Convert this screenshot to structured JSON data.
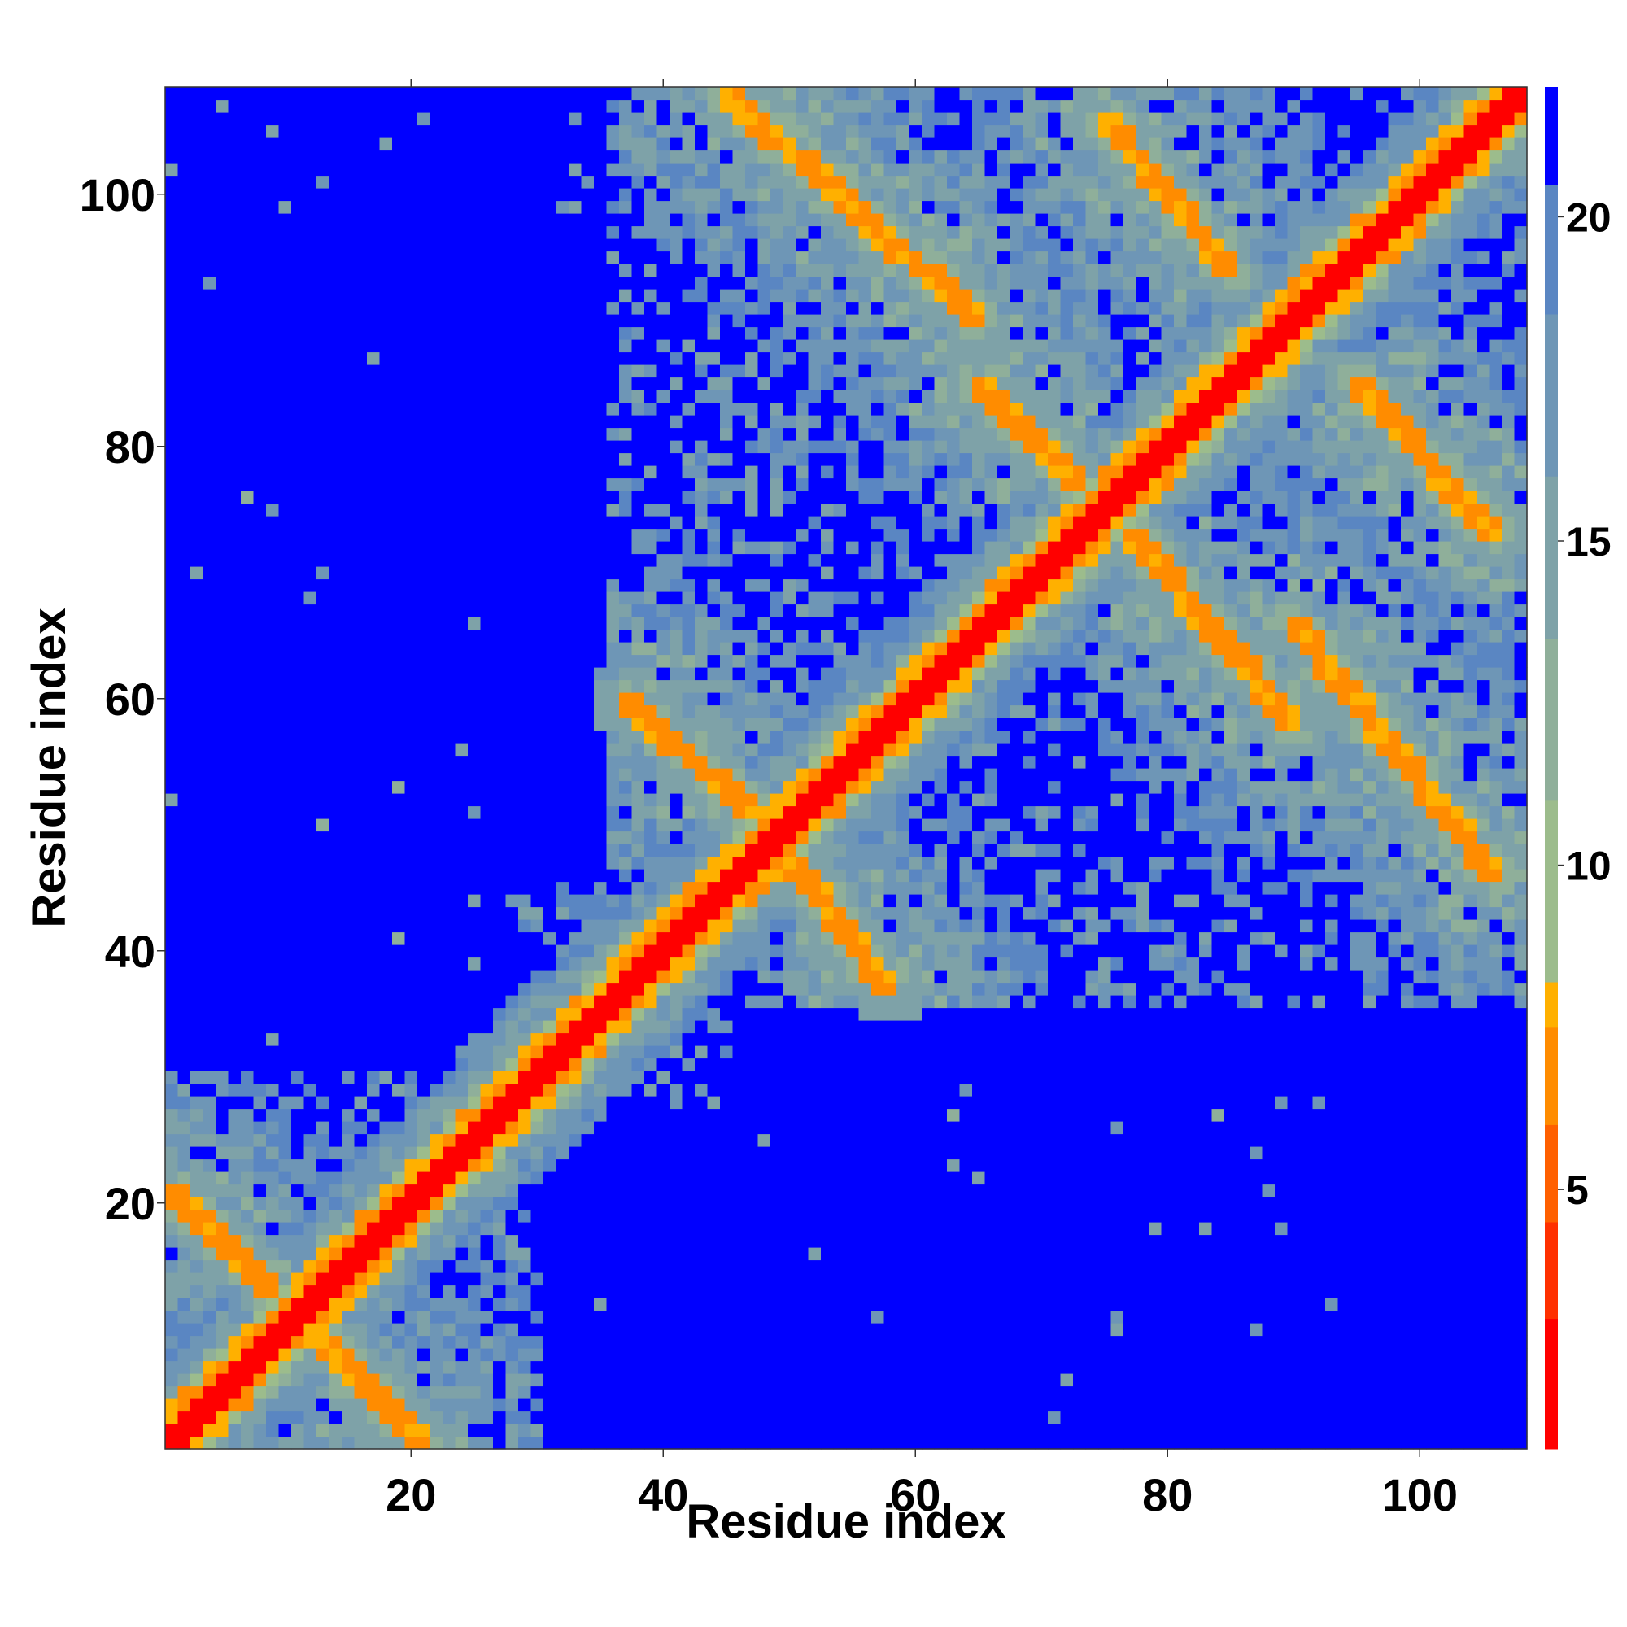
{
  "chart_data": {
    "type": "heatmap",
    "title": "",
    "xlabel": "Residue index",
    "ylabel": "Residue index",
    "n_residues": 108,
    "xlim": [
      1,
      108
    ],
    "ylim": [
      1,
      108
    ],
    "x_ticks": [
      20,
      40,
      60,
      80,
      100
    ],
    "y_ticks": [
      20,
      40,
      60,
      80,
      100
    ],
    "colorbar": {
      "range": [
        1,
        22
      ],
      "ticks": [
        5,
        10,
        15,
        20
      ],
      "colors": [
        "#ff0000",
        "#ff3000",
        "#ff6000",
        "#ff8c00",
        "#ffb000",
        "#9cbc8c",
        "#8faf9a",
        "#7ea2a8",
        "#6e96b6",
        "#5a86c2",
        "#0000ff"
      ],
      "boundaries": [
        1,
        3,
        4.5,
        6,
        7.5,
        8.2,
        11,
        13.5,
        16,
        18.5,
        20.5,
        22
      ]
    },
    "contact_bands": [
      {
        "type": "diagonal",
        "from": [
          1,
          1
        ],
        "to": [
          108,
          108
        ]
      },
      {
        "type": "antiparallel",
        "from": [
          1,
          21
        ],
        "to": [
          21,
          1
        ]
      },
      {
        "type": "antiparallel",
        "from": [
          37,
          60
        ],
        "to": [
          48,
          50
        ]
      },
      {
        "type": "antiparallel",
        "from": [
          48,
          50
        ],
        "to": [
          58,
          37
        ]
      },
      {
        "type": "antiparallel",
        "from": [
          45,
          108
        ],
        "to": [
          65,
          90
        ]
      },
      {
        "type": "antiparallel",
        "from": [
          75,
          106
        ],
        "to": [
          85,
          94
        ]
      },
      {
        "type": "antiparallel",
        "from": [
          65,
          85
        ],
        "to": [
          78,
          72
        ]
      },
      {
        "type": "antiparallel",
        "from": [
          78,
          72
        ],
        "to": [
          90,
          58
        ]
      },
      {
        "type": "antiparallel",
        "from": [
          90,
          66
        ],
        "to": [
          106,
          46
        ]
      },
      {
        "type": "antiparallel",
        "from": [
          95,
          85
        ],
        "to": [
          106,
          73
        ]
      }
    ],
    "medium_regions": [
      {
        "x": [
          36,
          108
        ],
        "y": [
          36,
          108
        ]
      },
      {
        "x": [
          28,
          45
        ],
        "y": [
          28,
          45
        ]
      },
      {
        "x": [
          1,
          30
        ],
        "y": [
          1,
          30
        ]
      }
    ]
  }
}
